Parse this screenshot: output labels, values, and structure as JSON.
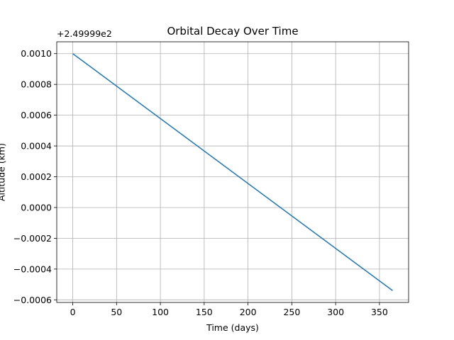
{
  "chart_data": {
    "type": "line",
    "title": "Orbital Decay Over Time",
    "x_label": "Time (days)",
    "y_label": "Altitude (km)",
    "y_offset_text": "+2.49999e2",
    "x": [
      0,
      365
    ],
    "series": [
      {
        "color": "#1f77b4",
        "values": [
          0.001,
          -0.00054
        ]
      }
    ],
    "xlim": [
      -18.25,
      383.25
    ],
    "xticks": [
      0,
      50,
      100,
      150,
      200,
      250,
      300,
      350
    ],
    "ylim": [
      -0.000617,
      0.001077
    ],
    "yticks": [
      {
        "value": -0.0006,
        "label": "−0.0006"
      },
      {
        "value": -0.0004,
        "label": "−0.0004"
      },
      {
        "value": -0.0002,
        "label": "−0.0002"
      },
      {
        "value": 0,
        "label": "0.0000"
      },
      {
        "value": 0.0002,
        "label": "0.0002"
      },
      {
        "value": 0.0004,
        "label": "0.0004"
      },
      {
        "value": 0.0006,
        "label": "0.0006"
      },
      {
        "value": 0.0008,
        "label": "0.0008"
      },
      {
        "value": 0.001,
        "label": "0.0010"
      }
    ],
    "grid": true
  }
}
